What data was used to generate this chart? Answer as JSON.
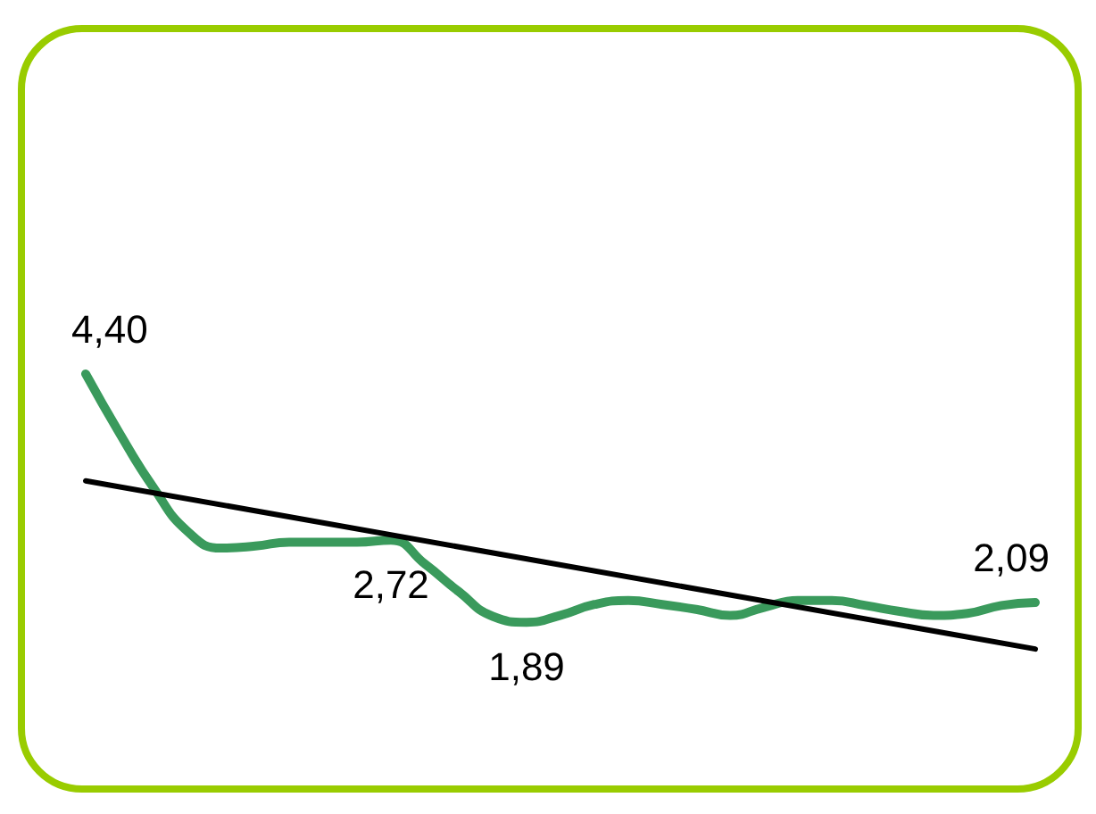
{
  "chart_data": {
    "type": "line",
    "categories": [
      null,
      null,
      null,
      null,
      null,
      null,
      null,
      null,
      null,
      null,
      null,
      null,
      null,
      null,
      null,
      null,
      null,
      null,
      null,
      null,
      null,
      null,
      null,
      null,
      null,
      null,
      null,
      null,
      null
    ],
    "series": [
      {
        "color": "#3a9a5c",
        "values": [
          4.4,
          3.8,
          3.25,
          2.81,
          2.64,
          2.66,
          2.7,
          2.7,
          2.7,
          2.72,
          2.48,
          2.2,
          1.95,
          1.89,
          1.96,
          2.07,
          2.11,
          2.07,
          2.02,
          1.96,
          2.04,
          2.11,
          2.11,
          2.06,
          2.0,
          1.96,
          1.98,
          2.06,
          2.09
        ],
        "value_labels": [
          "4,40",
          null,
          null,
          null,
          null,
          null,
          null,
          null,
          null,
          "2,72",
          null,
          null,
          null,
          "1,89",
          null,
          null,
          null,
          null,
          null,
          null,
          null,
          null,
          null,
          null,
          null,
          null,
          null,
          null,
          "2,09"
        ]
      },
      {
        "type": "line",
        "color": "#000000",
        "values": [
          3.32,
          null,
          null,
          null,
          null,
          null,
          null,
          null,
          null,
          null,
          null,
          null,
          null,
          null,
          null,
          null,
          null,
          null,
          null,
          null,
          null,
          null,
          null,
          null,
          null,
          null,
          null,
          null,
          1.62
        ]
      }
    ]
  }
}
